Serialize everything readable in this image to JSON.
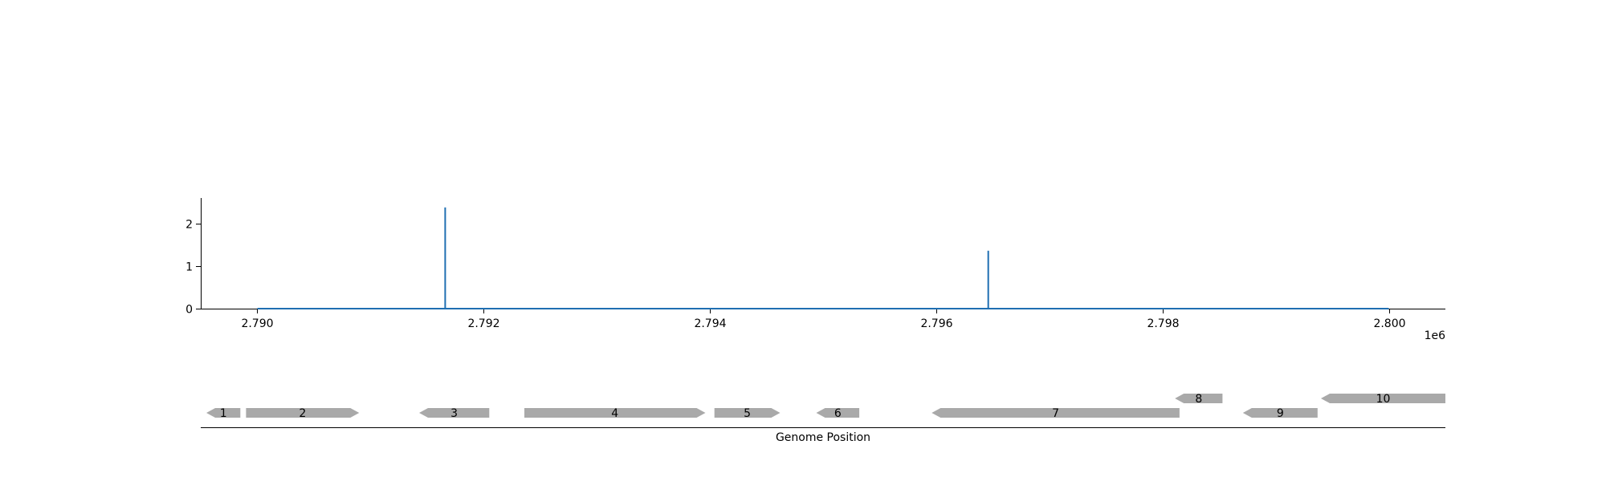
{
  "chart_data": {
    "type": "line",
    "title": "",
    "ylabel": "",
    "xlabel": "Genome Position",
    "x_offset_label": "1e6",
    "x_ticks": [
      2.79,
      2.792,
      2.794,
      2.796,
      2.798,
      2.8
    ],
    "x_tick_labels": [
      "2.790",
      "2.792",
      "2.794",
      "2.796",
      "2.798",
      "2.800"
    ],
    "xlim": [
      2.7895,
      2.8005
    ],
    "y_ticks": [
      0,
      1,
      2
    ],
    "y_tick_labels": [
      "0",
      "1",
      "2"
    ],
    "ylim": [
      0,
      2.6
    ],
    "grid": false,
    "legend": "none",
    "color": "#1f6fb2",
    "series": [
      {
        "x": [
          2.79,
          2.79166,
          2.79166,
          2.79166,
          2.79646,
          2.79646,
          2.79646,
          2.8
        ],
        "y": [
          0,
          0,
          2.38,
          0,
          0,
          1.36,
          0,
          0
        ]
      }
    ],
    "genes": [
      {
        "label": "1",
        "start": 2.78955,
        "end": 2.78985,
        "strand": "-",
        "row": 0
      },
      {
        "label": "2",
        "start": 2.7899,
        "end": 2.7909,
        "strand": "+",
        "row": 0
      },
      {
        "label": "3",
        "start": 2.79143,
        "end": 2.79205,
        "strand": "-",
        "row": 0
      },
      {
        "label": "4",
        "start": 2.79236,
        "end": 2.79396,
        "strand": "+",
        "row": 0
      },
      {
        "label": "5",
        "start": 2.79404,
        "end": 2.79462,
        "strand": "+",
        "row": 0
      },
      {
        "label": "6",
        "start": 2.79494,
        "end": 2.79532,
        "strand": "-",
        "row": 0
      },
      {
        "label": "7",
        "start": 2.79596,
        "end": 2.79815,
        "strand": "-",
        "row": 0
      },
      {
        "label": "8",
        "start": 2.79811,
        "end": 2.79853,
        "strand": "-",
        "row": 1
      },
      {
        "label": "9",
        "start": 2.79871,
        "end": 2.79937,
        "strand": "-",
        "row": 0
      },
      {
        "label": "10",
        "start": 2.7994,
        "end": 2.8005,
        "strand": "-",
        "row": 1
      }
    ],
    "gene_color": "#a9a9a9"
  }
}
